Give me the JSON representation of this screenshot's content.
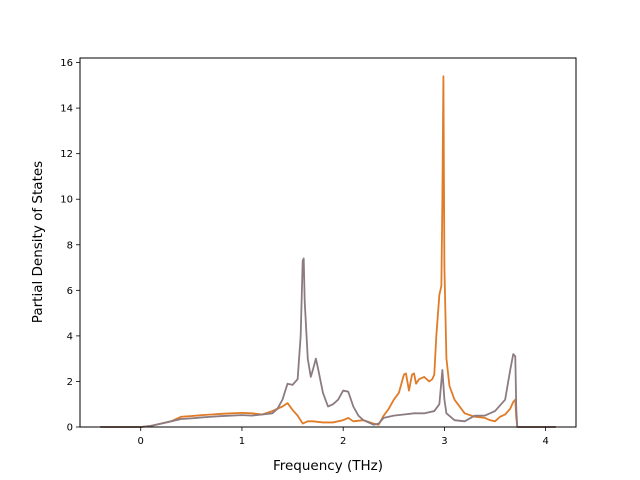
{
  "chart_data": {
    "type": "line",
    "title": "",
    "xlabel": "Frequency (THz)",
    "ylabel": "Partial Density of States",
    "xlim": [
      -0.6,
      4.3
    ],
    "ylim": [
      0,
      16.2
    ],
    "xticks": [
      0,
      1,
      2,
      3,
      4
    ],
    "yticks": [
      0,
      2,
      4,
      6,
      8,
      10,
      12,
      14,
      16
    ],
    "grid": false,
    "legend": "none",
    "series": [
      {
        "color": "#e07b28",
        "x": [
          -0.4,
          0.0,
          0.1,
          0.2,
          0.3,
          0.4,
          0.5,
          0.6,
          0.7,
          0.8,
          0.9,
          1.0,
          1.1,
          1.2,
          1.3,
          1.4,
          1.45,
          1.5,
          1.55,
          1.6,
          1.65,
          1.7,
          1.8,
          1.9,
          2.0,
          2.05,
          2.1,
          2.2,
          2.3,
          2.35,
          2.4,
          2.45,
          2.5,
          2.55,
          2.6,
          2.62,
          2.65,
          2.68,
          2.7,
          2.72,
          2.75,
          2.8,
          2.85,
          2.88,
          2.9,
          2.92,
          2.95,
          2.97,
          2.98,
          2.99,
          3.0,
          3.02,
          3.05,
          3.1,
          3.2,
          3.3,
          3.4,
          3.45,
          3.5,
          3.55,
          3.6,
          3.65,
          3.68,
          3.7,
          3.71,
          3.72,
          4.0,
          4.1
        ],
        "values": [
          0.0,
          0.0,
          0.05,
          0.15,
          0.25,
          0.45,
          0.48,
          0.52,
          0.55,
          0.58,
          0.6,
          0.62,
          0.6,
          0.55,
          0.7,
          0.9,
          1.05,
          0.75,
          0.5,
          0.15,
          0.25,
          0.25,
          0.2,
          0.2,
          0.3,
          0.4,
          0.25,
          0.3,
          0.15,
          0.1,
          0.5,
          0.8,
          1.2,
          1.5,
          2.3,
          2.35,
          1.6,
          2.3,
          2.35,
          1.9,
          2.1,
          2.2,
          2.0,
          2.1,
          2.3,
          4.0,
          5.8,
          6.2,
          10.0,
          15.4,
          7.0,
          3.0,
          1.8,
          1.2,
          0.6,
          0.45,
          0.4,
          0.3,
          0.25,
          0.45,
          0.55,
          0.8,
          1.1,
          1.2,
          0.4,
          0.0,
          0.0,
          0.0
        ]
      },
      {
        "color": "#8c7b80",
        "x": [
          -0.4,
          0.0,
          0.1,
          0.2,
          0.3,
          0.4,
          0.5,
          0.6,
          0.7,
          0.8,
          0.9,
          1.0,
          1.1,
          1.2,
          1.3,
          1.35,
          1.4,
          1.45,
          1.5,
          1.55,
          1.58,
          1.6,
          1.61,
          1.62,
          1.65,
          1.68,
          1.7,
          1.73,
          1.75,
          1.8,
          1.85,
          1.9,
          1.95,
          2.0,
          2.05,
          2.1,
          2.15,
          2.2,
          2.25,
          2.3,
          2.35,
          2.4,
          2.5,
          2.6,
          2.7,
          2.8,
          2.9,
          2.95,
          2.98,
          3.0,
          3.02,
          3.1,
          3.2,
          3.3,
          3.4,
          3.5,
          3.6,
          3.65,
          3.68,
          3.7,
          3.71,
          3.72,
          4.0,
          4.1
        ],
        "values": [
          0.0,
          0.0,
          0.05,
          0.15,
          0.25,
          0.35,
          0.38,
          0.42,
          0.45,
          0.48,
          0.5,
          0.52,
          0.5,
          0.55,
          0.6,
          0.8,
          1.2,
          1.9,
          1.85,
          2.1,
          4.0,
          7.3,
          7.4,
          5.5,
          3.0,
          2.2,
          2.5,
          3.0,
          2.6,
          1.5,
          0.9,
          1.0,
          1.2,
          1.6,
          1.55,
          0.9,
          0.5,
          0.3,
          0.2,
          0.1,
          0.15,
          0.4,
          0.5,
          0.55,
          0.6,
          0.6,
          0.7,
          1.0,
          2.5,
          1.2,
          0.6,
          0.3,
          0.25,
          0.5,
          0.5,
          0.7,
          1.2,
          2.5,
          3.2,
          3.1,
          0.8,
          0.0,
          0.0,
          0.0
        ]
      }
    ]
  }
}
